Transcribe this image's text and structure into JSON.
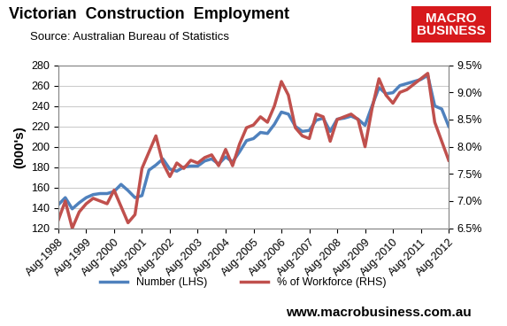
{
  "chart_data": {
    "type": "line",
    "title": "Victorian  Construction  Employment",
    "subtitle": "Source: Australian Bureau of Statistics",
    "y_label": "(000's)",
    "annotations": {
      "logo": [
        "MACRO",
        "BUSINESS"
      ],
      "website": "www.macrobusiness.com.au"
    },
    "categories": [
      "Aug-1998",
      null,
      null,
      null,
      "Aug-1999",
      null,
      null,
      null,
      "Aug-2000",
      null,
      null,
      null,
      "Aug-2001",
      null,
      null,
      null,
      "Aug-2002",
      null,
      null,
      null,
      "Aug-2003",
      null,
      null,
      null,
      "Aug-2004",
      null,
      null,
      null,
      "Aug-2005",
      null,
      null,
      null,
      "Aug-2006",
      null,
      null,
      null,
      "Aug-2007",
      null,
      null,
      null,
      "Aug-2008",
      null,
      null,
      null,
      "Aug-2009",
      null,
      null,
      null,
      "Aug-2010",
      null,
      null,
      null,
      "Aug-2011",
      null,
      null,
      null,
      "Aug-2012"
    ],
    "series": [
      {
        "name": "Number (LHS)",
        "color": "#4f81bd",
        "axis": "y",
        "values": [
          143,
          150,
          139,
          145,
          150,
          153,
          154,
          154,
          156,
          163,
          157,
          150,
          152,
          177,
          182,
          188,
          178,
          176,
          180,
          181,
          181,
          186,
          188,
          183,
          190,
          185,
          195,
          206,
          208,
          214,
          213,
          222,
          234,
          232,
          220,
          215,
          216,
          226,
          228,
          215,
          227,
          228,
          230,
          227,
          221,
          240,
          258,
          252,
          253,
          260,
          262,
          264,
          266,
          270,
          240,
          237,
          220
        ]
      },
      {
        "name": "% of Workforce (RHS)",
        "color": "#c0504d",
        "axis": "y2",
        "values": [
          6.65,
          7.0,
          6.5,
          6.8,
          6.95,
          7.05,
          7.0,
          6.95,
          7.2,
          6.9,
          6.6,
          6.75,
          7.6,
          7.9,
          8.2,
          7.7,
          7.45,
          7.7,
          7.6,
          7.75,
          7.7,
          7.8,
          7.85,
          7.65,
          7.95,
          7.65,
          8.05,
          8.35,
          8.4,
          8.55,
          8.45,
          8.75,
          9.2,
          8.95,
          8.35,
          8.2,
          8.15,
          8.6,
          8.55,
          8.1,
          8.5,
          8.55,
          8.6,
          8.5,
          8.0,
          8.7,
          9.25,
          8.95,
          8.8,
          9.0,
          9.05,
          9.15,
          9.25,
          9.35,
          8.45,
          8.1,
          7.75
        ]
      }
    ],
    "ylim": [
      120,
      280
    ],
    "yticks": [
      120,
      140,
      160,
      180,
      200,
      220,
      240,
      260,
      280
    ],
    "y2lim": [
      6.5,
      9.5
    ],
    "y2ticks": [
      {
        "value": 6.5,
        "label": "6.5%"
      },
      {
        "value": 7.0,
        "label": "7.0%"
      },
      {
        "value": 7.5,
        "label": "7.5%"
      },
      {
        "value": 8.0,
        "label": "8.0%"
      },
      {
        "value": 8.5,
        "label": "8.5%"
      },
      {
        "value": 9.0,
        "label": "9.0%"
      },
      {
        "value": 9.5,
        "label": "9.5%"
      }
    ],
    "grid": true,
    "legend": "lower center"
  }
}
